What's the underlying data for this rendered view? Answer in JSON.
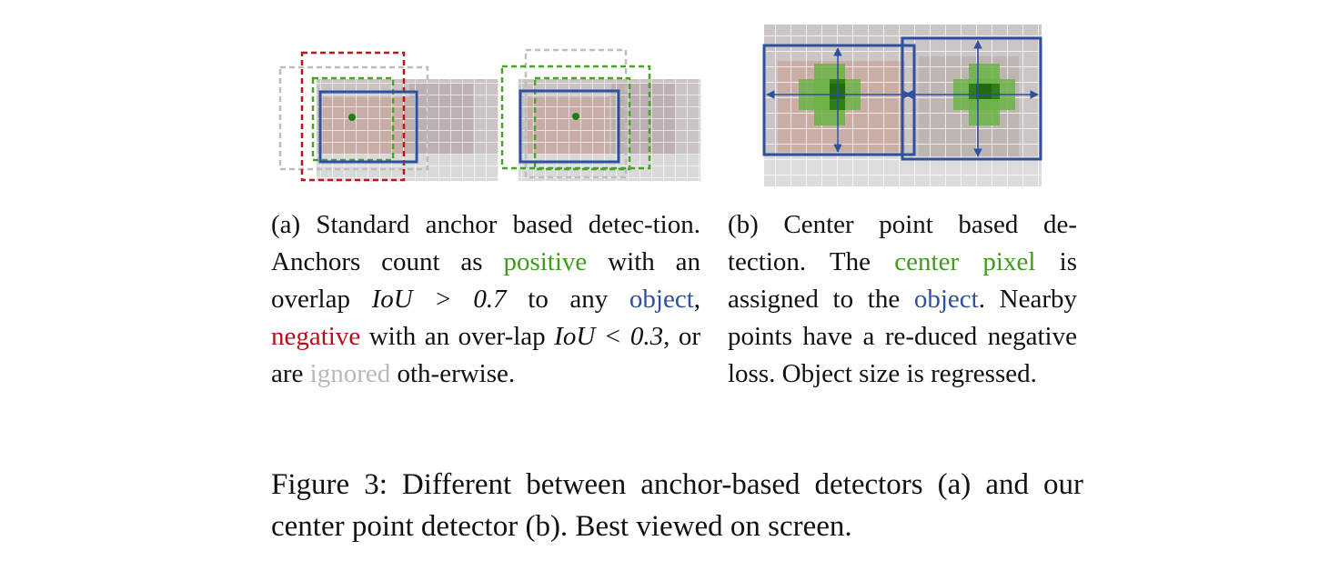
{
  "panel_a": {
    "caption": {
      "p1": "(a) Standard anchor based detec-tion. Anchors count as ",
      "positive": "positive",
      "p2": " with an overlap ",
      "iou_high": "IoU > 0.7",
      "p3": " to any ",
      "object": "object",
      "p4": ", ",
      "negative": "negative",
      "p5": " with an over-lap ",
      "iou_low": "IoU < 0.3",
      "p6": ", or are ",
      "ignored": "ignored",
      "p7": " oth-erwise."
    }
  },
  "panel_b": {
    "caption": {
      "p1": "(b) Center point based de-tection. The ",
      "center_pixel": "center pixel",
      "p2": " is assigned to the ",
      "object": "object",
      "p3": ". Nearby points have a re-duced negative loss. Object size is regressed."
    }
  },
  "figure_caption": "Figure 3: Different between anchor-based detectors (a) and our center point detector (b). Best viewed on screen.",
  "colors": {
    "positive": "#3f9a1f",
    "object": "#2f4f9f",
    "negative": "#b4121b",
    "ignored": "#b9b9b9",
    "center": "#3d8f1c"
  }
}
